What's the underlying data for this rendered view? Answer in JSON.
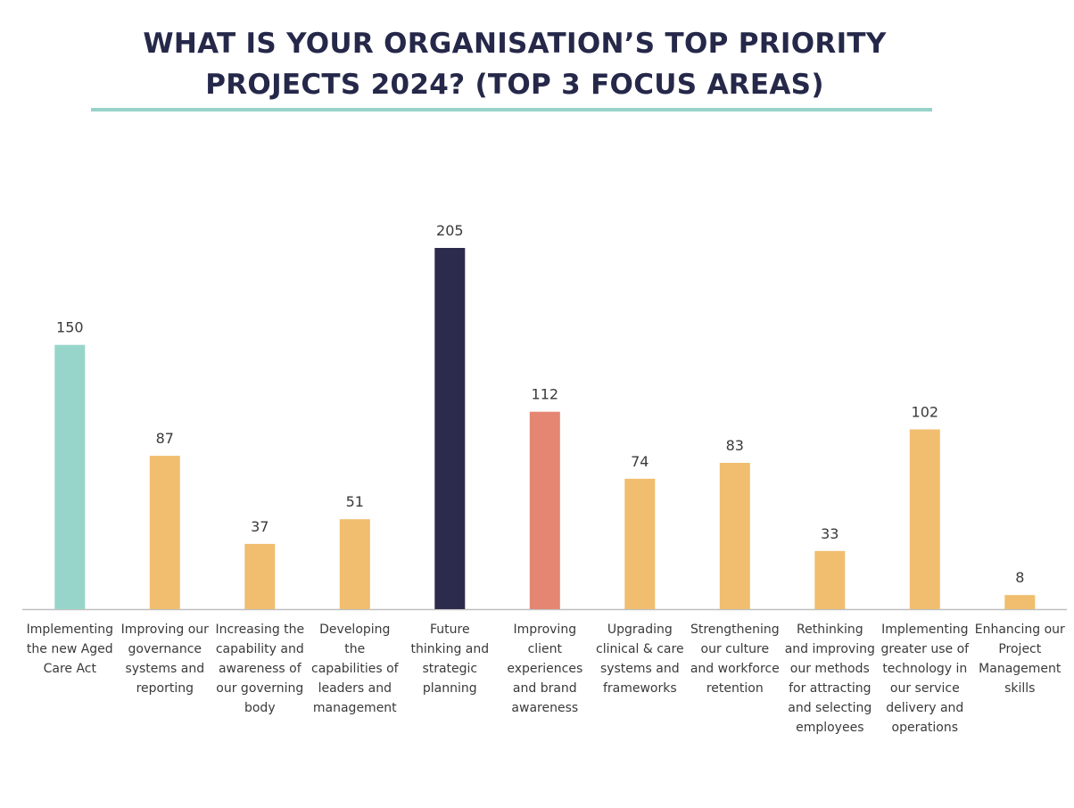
{
  "title": "WHAT IS YOUR ORGANISATION’S TOP PRIORITY PROJECTS 2024? (TOP 3 FOCUS AREAS)",
  "title_lines": [
    "WHAT IS YOUR ORGANISATION’S TOP PRIORITY",
    "PROJECTS 2024? (TOP 3 FOCUS AREAS)"
  ],
  "colors": {
    "title": "#252849",
    "rule": "#97d3c8",
    "axis": "#bfbfbf",
    "label": "#3a3a3a"
  },
  "chart_data": {
    "type": "bar",
    "title": "WHAT IS YOUR ORGANISATION’S TOP PRIORITY PROJECTS 2024? (TOP 3 FOCUS AREAS)",
    "xlabel": "",
    "ylabel": "",
    "ylim": [
      0,
      205
    ],
    "grid": false,
    "legend": "none",
    "categories": [
      "Implementing the new Aged Care Act",
      "Improving our governance systems and reporting",
      "Increasing the capability and awareness of our governing body",
      "Developing the capabilities of leaders and management",
      "Future thinking and strategic planning",
      "Improving client experiences and brand awareness",
      "Upgrading clinical & care systems and frameworks",
      "Strengthening our culture and workforce retention",
      "Rethinking and improving our methods for attracting and selecting employees",
      "Implementing greater use of technology in our service delivery and operations",
      "Enhancing our Project Management skills"
    ],
    "category_lines": [
      [
        "Implementing",
        "the new Aged",
        "Care Act"
      ],
      [
        "Improving our",
        "governance",
        "systems and",
        "reporting"
      ],
      [
        "Increasing the",
        "capability and",
        "awareness of",
        "our governing",
        "body"
      ],
      [
        "Developing",
        "the",
        "capabilities of",
        "leaders and",
        "management"
      ],
      [
        "Future",
        "thinking and",
        "strategic",
        "planning"
      ],
      [
        "Improving",
        "client",
        "experiences",
        "and brand",
        "awareness"
      ],
      [
        "Upgrading",
        "clinical & care",
        "systems and",
        "frameworks"
      ],
      [
        "Strengthening",
        "our culture",
        "and workforce",
        "retention"
      ],
      [
        "Rethinking",
        "and improving",
        "our methods",
        "for attracting",
        "and selecting",
        "employees"
      ],
      [
        "Implementing",
        "greater use of",
        "technology in",
        "our service",
        "delivery and",
        "operations"
      ],
      [
        "Enhancing our",
        "Project",
        "Management",
        "skills"
      ]
    ],
    "values": [
      150,
      87,
      37,
      51,
      205,
      112,
      74,
      83,
      33,
      102,
      8
    ],
    "bar_colors": [
      "#97d5cb",
      "#f0be6e",
      "#f0be6e",
      "#f0be6e",
      "#2d2b4d",
      "#e48672",
      "#f0be6e",
      "#f0be6e",
      "#f0be6e",
      "#f0be6e",
      "#f0be6e"
    ]
  }
}
